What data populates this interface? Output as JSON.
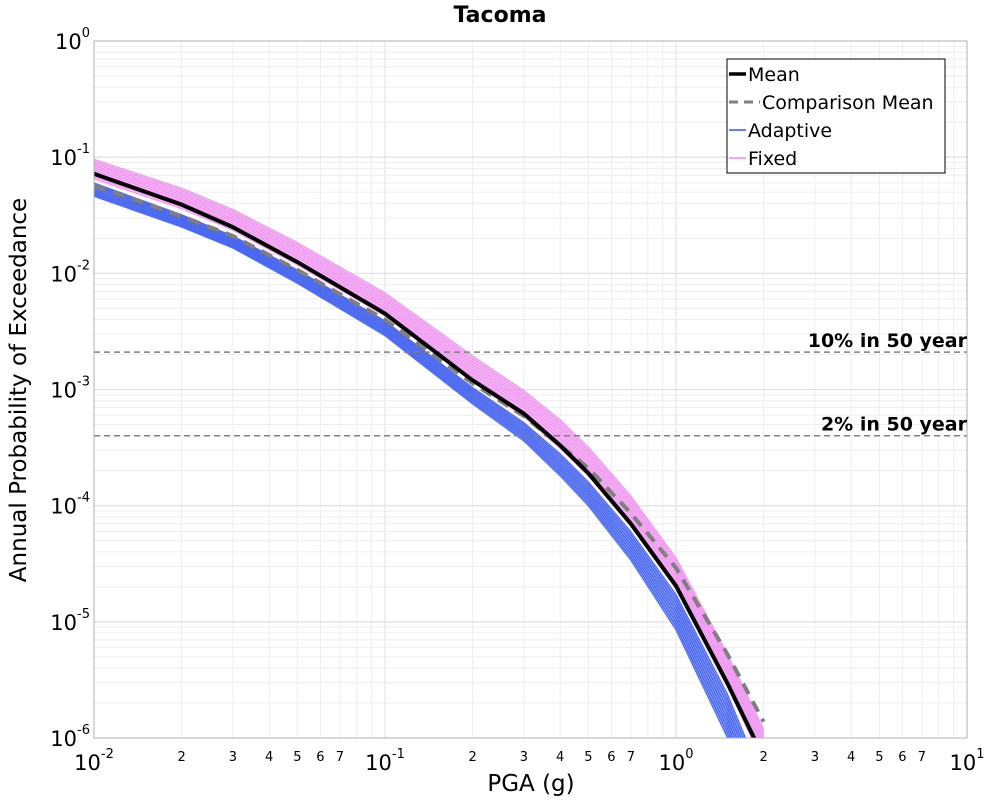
{
  "chart_data": {
    "type": "line",
    "title": "Tacoma",
    "xlabel": "PGA (g)",
    "ylabel": "Annual Probability of Exceedance",
    "x_scale": "log",
    "y_scale": "log",
    "xlim": [
      0.01,
      10
    ],
    "ylim": [
      1e-06,
      1
    ],
    "grid": true,
    "legend_position": "top-right",
    "x_major_ticks": [
      {
        "base": "10",
        "exp": "-2",
        "value": 0.01
      },
      {
        "base": "10",
        "exp": "-1",
        "value": 0.1
      },
      {
        "base": "10",
        "exp": "0",
        "value": 1
      },
      {
        "base": "10",
        "exp": "1",
        "value": 10
      }
    ],
    "x_minor_labels": [
      "2",
      "3",
      "4",
      "5",
      "6",
      "7"
    ],
    "y_major_ticks": [
      {
        "base": "10",
        "exp": "0",
        "value": 1
      },
      {
        "base": "10",
        "exp": "-1",
        "value": 0.1
      },
      {
        "base": "10",
        "exp": "-2",
        "value": 0.01
      },
      {
        "base": "10",
        "exp": "-3",
        "value": 0.001
      },
      {
        "base": "10",
        "exp": "-4",
        "value": 0.0001
      },
      {
        "base": "10",
        "exp": "-5",
        "value": 1e-05
      },
      {
        "base": "10",
        "exp": "-6",
        "value": 1e-06
      }
    ],
    "reference_lines": [
      {
        "label": "10% in 50 year",
        "y": 0.0021
      },
      {
        "label": "2% in 50 year",
        "y": 0.0004
      }
    ],
    "series": [
      {
        "name": "Mean",
        "color": "#000000",
        "style": "solid",
        "x": [
          0.01,
          0.02,
          0.03,
          0.05,
          0.1,
          0.2,
          0.3,
          0.4,
          0.5,
          0.7,
          1.0,
          1.5,
          2.0
        ],
        "y": [
          0.072,
          0.039,
          0.025,
          0.0125,
          0.0045,
          0.0012,
          0.00062,
          0.00033,
          0.00019,
          6.98e-05,
          2.04e-05,
          2.98e-06,
          6.8e-07
        ]
      },
      {
        "name": "Comparison Mean",
        "color": "#7f7f7f",
        "style": "dashed",
        "x": [
          0.01,
          0.02,
          0.03,
          0.05,
          0.1,
          0.2,
          0.3,
          0.4,
          0.5,
          0.7,
          1.0,
          1.5,
          2.0
        ],
        "y": [
          0.057,
          0.031,
          0.021,
          0.0107,
          0.004,
          0.00113,
          0.00059,
          0.00033,
          0.00021,
          8.6e-05,
          2.91e-05,
          5.3e-06,
          1.38e-06
        ]
      },
      {
        "name": "Adaptive",
        "color": "#3355ee",
        "style": "band",
        "x": [
          0.01,
          0.02,
          0.03,
          0.05,
          0.1,
          0.2,
          0.3,
          0.4,
          0.5,
          0.7,
          1.0,
          1.5,
          1.8
        ],
        "y_low": [
          0.046,
          0.025,
          0.0165,
          0.0082,
          0.0029,
          0.00075,
          0.00036,
          0.00018,
          9.93e-05,
          3.38e-05,
          8.5e-06,
          1.01e-06,
          2.8e-07
        ],
        "y_high": [
          0.06,
          0.032,
          0.021,
          0.0107,
          0.0039,
          0.00104,
          0.00052,
          0.00028,
          0.00016,
          5.96e-05,
          1.72e-05,
          2.41e-06,
          8e-07
        ]
      },
      {
        "name": "Fixed",
        "color": "#ee88ee",
        "style": "band",
        "x": [
          0.01,
          0.02,
          0.03,
          0.05,
          0.1,
          0.2,
          0.3,
          0.4,
          0.5,
          0.7,
          1.0,
          1.5,
          2.0
        ],
        "y_low": [
          0.065,
          0.036,
          0.0235,
          0.0118,
          0.0043,
          0.00116,
          0.00058,
          0.00031,
          0.00018,
          6.62e-05,
          1.91e-05,
          2.76e-06,
          6e-07
        ],
        "y_high": [
          0.096,
          0.054,
          0.0355,
          0.0184,
          0.0068,
          0.00195,
          0.00098,
          0.00055,
          0.00032,
          0.000121,
          3.56e-05,
          5.33e-06,
          1.19e-06
        ]
      }
    ]
  }
}
